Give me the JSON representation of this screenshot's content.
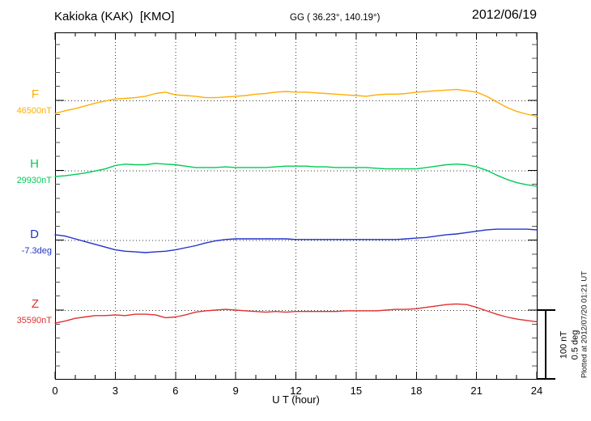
{
  "header": {
    "station_title": "Kakioka (KAK)  [KMO]",
    "coordinates": "GG ( 36.23°, 140.19°)",
    "date": "2012/06/19"
  },
  "footer": {
    "xaxis_label": "U T (hour)"
  },
  "sidebar_right": {
    "scale_label_nt": "100 nT",
    "scale_label_deg": "0.5 deg",
    "plotted_at": "Plotted at 2012/07/20 01:21 UT"
  },
  "chart_data": {
    "type": "line",
    "title": "Kakioka (KAK) [KMO] magnetogram for 2012/06/19",
    "xlabel": "U T (hour)",
    "x_range": [
      0,
      24
    ],
    "x_step_hours": 0.5,
    "x_tick_minor_step": 1,
    "x_tick_major_step": 3,
    "x_tick_labels": [
      "0",
      "3",
      "6",
      "9",
      "12",
      "15",
      "18",
      "21",
      "24"
    ],
    "grid": "vertical dotted lines every 3 h; horizontal dotted baseline per channel; minor y-ticks every 20 nT (0.1 deg)",
    "legend_position": "left margin channel labels",
    "scale_bar": {
      "nT_per_division": 100,
      "deg_per_division": 0.5
    },
    "series": [
      {
        "name": "F",
        "unit": "nT",
        "reference": 46500,
        "reference_label": "46500nT",
        "color": "#FFAE00",
        "offsets_from_reference": [
          -19,
          -15,
          -12,
          -8,
          -4,
          -1,
          2,
          3,
          4,
          6,
          10,
          12,
          8,
          7,
          6,
          4,
          4,
          5,
          6,
          7,
          9,
          10,
          12,
          13,
          12,
          12,
          11,
          10,
          9,
          8,
          7,
          6,
          8,
          9,
          9,
          10,
          12,
          13,
          14,
          15,
          16,
          14,
          12,
          6,
          -2,
          -10,
          -16,
          -20,
          -23
        ]
      },
      {
        "name": "H",
        "unit": "nT",
        "reference": 29930,
        "reference_label": "29930nT",
        "color": "#00CC55",
        "offsets_from_reference": [
          -9,
          -8,
          -6,
          -4,
          -1,
          2,
          7,
          9,
          8,
          8,
          10,
          9,
          8,
          6,
          4,
          4,
          4,
          5,
          4,
          4,
          4,
          4,
          5,
          6,
          6,
          6,
          5,
          5,
          4,
          4,
          4,
          4,
          3,
          2,
          2,
          2,
          2,
          4,
          6,
          8,
          9,
          8,
          5,
          0,
          -7,
          -13,
          -18,
          -21,
          -23
        ]
      },
      {
        "name": "D",
        "unit": "deg",
        "reference": -7.3,
        "reference_label": "-7.3deg",
        "color": "#2233CC",
        "offsets_from_reference": [
          0.04,
          0.03,
          0.01,
          -0.01,
          -0.03,
          -0.05,
          -0.07,
          -0.08,
          -0.085,
          -0.09,
          -0.085,
          -0.08,
          -0.07,
          -0.055,
          -0.04,
          -0.02,
          -0.005,
          0.005,
          0.01,
          0.01,
          0.01,
          0.01,
          0.01,
          0.01,
          0.005,
          0.005,
          0.005,
          0.005,
          0.005,
          0.005,
          0.005,
          0.005,
          0.005,
          0.005,
          0.005,
          0.01,
          0.015,
          0.02,
          0.03,
          0.04,
          0.045,
          0.055,
          0.065,
          0.075,
          0.08,
          0.08,
          0.08,
          0.08,
          0.075
        ]
      },
      {
        "name": "Z",
        "unit": "nT",
        "reference": 35590,
        "reference_label": "35590nT",
        "color": "#E03030",
        "offsets_from_reference": [
          -19,
          -16,
          -12,
          -10,
          -8,
          -8,
          -7,
          -8,
          -6,
          -6,
          -7,
          -11,
          -10,
          -7,
          -3,
          -1,
          0,
          1,
          0,
          -1,
          -2,
          -3,
          -2,
          -3,
          -2,
          -2,
          -2,
          -2,
          -2,
          -1,
          -1,
          -1,
          -1,
          0,
          1,
          1,
          2,
          4,
          6,
          8,
          9,
          8,
          4,
          -1,
          -6,
          -10,
          -13,
          -15,
          -17
        ]
      }
    ]
  }
}
